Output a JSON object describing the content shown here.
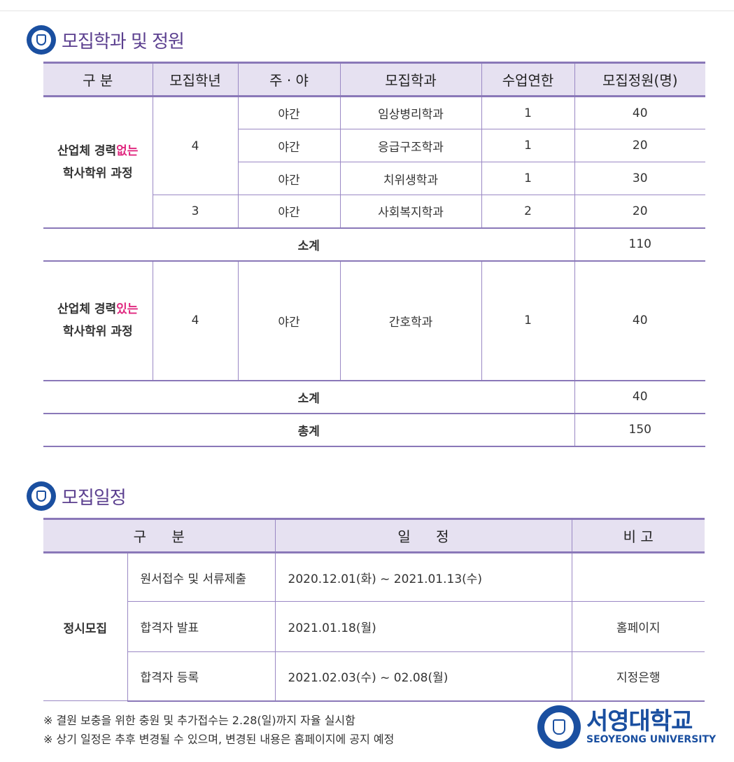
{
  "section1": {
    "title": "모집학과 및 정원",
    "headers": [
      "구 분",
      "모집학년",
      "주 · 야",
      "모집학과",
      "수업연한",
      "모집정원(명)"
    ],
    "group1": {
      "label_pre": "산업체 경력",
      "label_hl": "없는",
      "label_line2": "학사학위 과정"
    },
    "group1_rows": [
      {
        "grade": "4",
        "time": "야간",
        "dept": "임상병리학과",
        "years": "1",
        "quota": "40"
      },
      {
        "grade": "4",
        "time": "야간",
        "dept": "응급구조학과",
        "years": "1",
        "quota": "20"
      },
      {
        "grade": "4",
        "time": "야간",
        "dept": "치위생학과",
        "years": "1",
        "quota": "30"
      },
      {
        "grade": "3",
        "time": "야간",
        "dept": "사회복지학과",
        "years": "2",
        "quota": "20"
      }
    ],
    "subtotal1": {
      "label": "소계",
      "value": "110"
    },
    "group2": {
      "label_pre": "산업체 경력",
      "label_hl": "있는",
      "label_line2": "학사학위 과정"
    },
    "group2_rows": [
      {
        "grade": "4",
        "time": "야간",
        "dept": "간호학과",
        "years": "1",
        "quota": "40"
      }
    ],
    "subtotal2": {
      "label": "소계",
      "value": "40"
    },
    "total": {
      "label": "총계",
      "value": "150"
    }
  },
  "section2": {
    "title": "모집일정",
    "headers": [
      "구 분",
      "일 정",
      "비 고"
    ],
    "category": "정시모집",
    "rows": [
      {
        "item": "원서접수 및 서류제출",
        "date": "2020.12.01(화) ~ 2021.01.13(수)",
        "note": ""
      },
      {
        "item": "합격자 발표",
        "date": "2021.01.18(월)",
        "note": "홈페이지"
      },
      {
        "item": "합격자 등록",
        "date": "2021.02.03(수) ~ 02.08(월)",
        "note": "지정은행"
      }
    ]
  },
  "notes": [
    "※ 결원 보충을 위한 충원 및 추가접수는 2.28(일)까지 자율 실시함",
    "※ 상기 일정은 추후 변경될 수 있으며, 변경된 내용은 홈페이지에 공지 예정"
  ],
  "brand": {
    "name_ko": "서영대학교",
    "name_en": "SEOYEONG UNIVERSITY"
  },
  "colors": {
    "accent": "#5b3f8f",
    "header_bg": "#e6e1f1",
    "border": "#8a78b8",
    "highlight": "#e0287f",
    "brand": "#1a4fa0"
  }
}
